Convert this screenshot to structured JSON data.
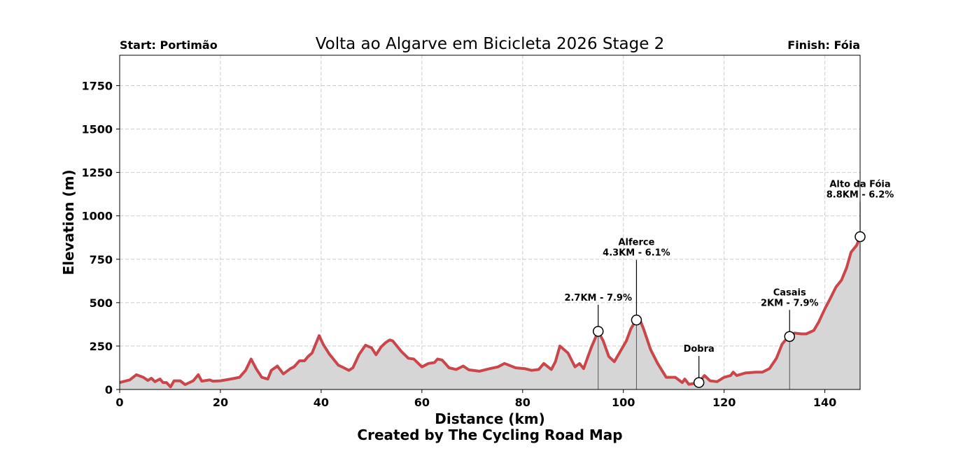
{
  "chart_data": {
    "type": "area",
    "title": "Volta ao Algarve em Bicicleta 2026 Stage 2",
    "start_label": "Start: Portimão",
    "finish_label": "Finish: Fóia",
    "xlabel": "Distance (km)",
    "ylabel": "Elevation (m)",
    "footer": "Created by The Cycling Road Map",
    "xlim": [
      0,
      147
    ],
    "ylim": [
      0,
      1925
    ],
    "x_ticks": [
      0,
      20,
      40,
      60,
      80,
      100,
      120,
      140
    ],
    "y_ticks": [
      0,
      250,
      500,
      750,
      1000,
      1250,
      1500,
      1750
    ],
    "grid": true,
    "colors": {
      "line": "#c9464b",
      "fill": "#d6d6d6",
      "grid": "#cccccc"
    },
    "profile": [
      [
        0,
        40
      ],
      [
        2,
        55
      ],
      [
        3.3,
        85
      ],
      [
        4.7,
        70
      ],
      [
        5.6,
        52
      ],
      [
        6.3,
        65
      ],
      [
        7,
        45
      ],
      [
        8,
        60
      ],
      [
        8.6,
        40
      ],
      [
        9.3,
        40
      ],
      [
        10.1,
        15
      ],
      [
        10.8,
        50
      ],
      [
        12,
        50
      ],
      [
        13,
        28
      ],
      [
        14.6,
        50
      ],
      [
        15.6,
        85
      ],
      [
        16.3,
        48
      ],
      [
        17.9,
        55
      ],
      [
        18.5,
        48
      ],
      [
        20,
        50
      ],
      [
        22,
        60
      ],
      [
        23.8,
        70
      ],
      [
        25,
        110
      ],
      [
        26.1,
        175
      ],
      [
        27.1,
        120
      ],
      [
        28.2,
        70
      ],
      [
        29.4,
        60
      ],
      [
        30.1,
        110
      ],
      [
        31.3,
        135
      ],
      [
        32.5,
        90
      ],
      [
        33.9,
        120
      ],
      [
        34.6,
        130
      ],
      [
        35.7,
        165
      ],
      [
        36.7,
        165
      ],
      [
        37.4,
        190
      ],
      [
        38.2,
        210
      ],
      [
        39.6,
        310
      ],
      [
        40.4,
        260
      ],
      [
        41.6,
        205
      ],
      [
        43.4,
        140
      ],
      [
        44.5,
        125
      ],
      [
        45.5,
        110
      ],
      [
        46.3,
        125
      ],
      [
        47.5,
        200
      ],
      [
        48.8,
        255
      ],
      [
        50,
        240
      ],
      [
        50.9,
        200
      ],
      [
        51.9,
        245
      ],
      [
        52.8,
        270
      ],
      [
        53.6,
        285
      ],
      [
        54.2,
        280
      ],
      [
        55.9,
        220
      ],
      [
        57.3,
        180
      ],
      [
        58.4,
        175
      ],
      [
        59.3,
        150
      ],
      [
        60,
        130
      ],
      [
        61.3,
        150
      ],
      [
        62.5,
        155
      ],
      [
        63.1,
        175
      ],
      [
        64,
        170
      ],
      [
        65.4,
        125
      ],
      [
        66.8,
        115
      ],
      [
        68.2,
        135
      ],
      [
        69.3,
        113
      ],
      [
        71.4,
        105
      ],
      [
        73.5,
        120
      ],
      [
        75.1,
        130
      ],
      [
        76.4,
        150
      ],
      [
        78.6,
        125
      ],
      [
        80.4,
        120
      ],
      [
        81.8,
        110
      ],
      [
        83.2,
        115
      ],
      [
        84.2,
        150
      ],
      [
        85.7,
        115
      ],
      [
        86.5,
        160
      ],
      [
        87.4,
        250
      ],
      [
        89,
        210
      ],
      [
        90.4,
        130
      ],
      [
        91.3,
        150
      ],
      [
        92.1,
        120
      ],
      [
        93.6,
        240
      ],
      [
        95,
        335
      ],
      [
        96,
        280
      ],
      [
        97.1,
        190
      ],
      [
        98.2,
        160
      ],
      [
        100.6,
        280
      ],
      [
        101.5,
        350
      ],
      [
        102.4,
        395
      ],
      [
        103.3,
        400
      ],
      [
        104,
        350
      ],
      [
        105.4,
        230
      ],
      [
        106.8,
        150
      ],
      [
        108.5,
        70
      ],
      [
        110.3,
        70
      ],
      [
        111.7,
        40
      ],
      [
        112.2,
        60
      ],
      [
        113,
        30
      ],
      [
        114.9,
        40
      ],
      [
        116.1,
        80
      ],
      [
        117.2,
        50
      ],
      [
        118.6,
        45
      ],
      [
        120,
        70
      ],
      [
        121.3,
        80
      ],
      [
        121.8,
        100
      ],
      [
        122.5,
        80
      ],
      [
        124.2,
        95
      ],
      [
        126.3,
        100
      ],
      [
        127.6,
        100
      ],
      [
        129,
        120
      ],
      [
        130.4,
        180
      ],
      [
        131.5,
        260
      ],
      [
        132.9,
        310
      ],
      [
        134,
        325
      ],
      [
        135.3,
        320
      ],
      [
        136.3,
        320
      ],
      [
        137.8,
        340
      ],
      [
        138.8,
        390
      ],
      [
        140.1,
        470
      ],
      [
        141,
        520
      ],
      [
        142.2,
        590
      ],
      [
        143.3,
        630
      ],
      [
        144.3,
        700
      ],
      [
        145.2,
        790
      ],
      [
        146.3,
        830
      ],
      [
        147,
        880
      ]
    ],
    "annotations": [
      {
        "name": "",
        "detail": "2.7KM - 7.9%",
        "x": 95,
        "y": 335,
        "drop_line": true
      },
      {
        "name": "Alferce",
        "detail": "4.3KM - 6.1%",
        "x": 102.6,
        "y": 400,
        "drop_line": true
      },
      {
        "name": "Dobra",
        "detail": "",
        "x": 115,
        "y": 40,
        "drop_line": false
      },
      {
        "name": "Casais",
        "detail": "2KM - 7.9%",
        "x": 133,
        "y": 305,
        "drop_line": true
      },
      {
        "name": "Alto da Fóia",
        "detail": "8.8KM - 6.2%",
        "x": 147,
        "y": 880,
        "drop_line": false
      }
    ]
  }
}
